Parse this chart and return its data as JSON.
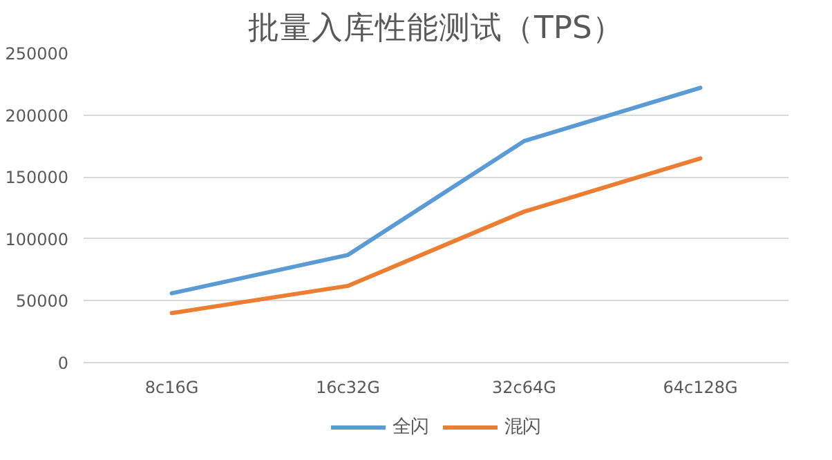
{
  "chart_data": {
    "type": "line",
    "title": "批量入库性能测试（TPS）",
    "categories": [
      "8c16G",
      "16c32G",
      "32c64G",
      "64c128G"
    ],
    "series": [
      {
        "name": "全闪",
        "color": "#5b9bd5",
        "values": [
          56000,
          87000,
          179000,
          222000
        ]
      },
      {
        "name": "混闪",
        "color": "#ed7d31",
        "values": [
          40000,
          62000,
          122000,
          165000
        ]
      }
    ],
    "ylim": [
      0,
      250000
    ],
    "yticks": [
      0,
      50000,
      100000,
      150000,
      200000,
      250000
    ],
    "grid": "y",
    "legend": "bottom",
    "marker": "none",
    "line_style": "solid"
  }
}
